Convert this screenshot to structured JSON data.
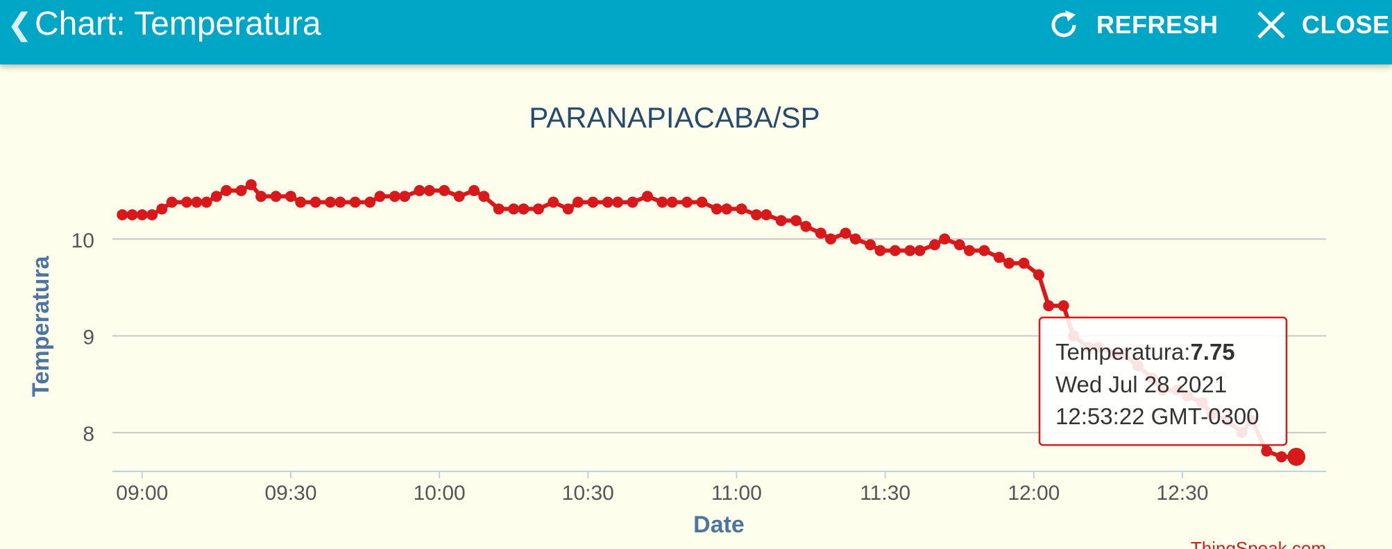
{
  "header": {
    "title": "Chart: Temperatura",
    "refresh_label": "REFRESH",
    "close_label": "CLOSE",
    "back_icon": "chevron-left-icon",
    "refresh_icon": "refresh-icon",
    "close_icon": "close-icon",
    "background_color": "#00a6c6"
  },
  "chart_data": {
    "type": "line",
    "title": "PARANAPIACABA/SP",
    "xlabel": "Date",
    "ylabel": "Temperatura",
    "x_ticks": [
      "09:00",
      "09:30",
      "10:00",
      "10:30",
      "11:00",
      "11:30",
      "12:00",
      "12:30"
    ],
    "y_ticks": [
      8,
      9,
      10
    ],
    "xlim": [
      "08:54",
      "12:59"
    ],
    "ylim": [
      7.6,
      10.8
    ],
    "grid": "horizontal",
    "line_color": "#d7191c",
    "background_color": "#fefeec",
    "series": [
      {
        "name": "Temperatura",
        "points": [
          [
            "08:56",
            10.25
          ],
          [
            "08:58",
            10.25
          ],
          [
            "09:00",
            10.25
          ],
          [
            "09:02",
            10.25
          ],
          [
            "09:04",
            10.31
          ],
          [
            "09:06",
            10.38
          ],
          [
            "09:09",
            10.38
          ],
          [
            "09:11",
            10.38
          ],
          [
            "09:13",
            10.38
          ],
          [
            "09:15",
            10.44
          ],
          [
            "09:17",
            10.5
          ],
          [
            "09:20",
            10.5
          ],
          [
            "09:22",
            10.56
          ],
          [
            "09:24",
            10.44
          ],
          [
            "09:27",
            10.44
          ],
          [
            "09:30",
            10.44
          ],
          [
            "09:32",
            10.38
          ],
          [
            "09:35",
            10.38
          ],
          [
            "09:38",
            10.38
          ],
          [
            "09:40",
            10.38
          ],
          [
            "09:43",
            10.38
          ],
          [
            "09:46",
            10.38
          ],
          [
            "09:48",
            10.44
          ],
          [
            "09:51",
            10.44
          ],
          [
            "09:53",
            10.44
          ],
          [
            "09:56",
            10.5
          ],
          [
            "09:58",
            10.5
          ],
          [
            "10:01",
            10.5
          ],
          [
            "10:04",
            10.44
          ],
          [
            "10:07",
            10.5
          ],
          [
            "10:09",
            10.44
          ],
          [
            "10:12",
            10.31
          ],
          [
            "10:15",
            10.31
          ],
          [
            "10:17",
            10.31
          ],
          [
            "10:20",
            10.31
          ],
          [
            "10:23",
            10.38
          ],
          [
            "10:26",
            10.31
          ],
          [
            "10:28",
            10.38
          ],
          [
            "10:31",
            10.38
          ],
          [
            "10:34",
            10.38
          ],
          [
            "10:36",
            10.38
          ],
          [
            "10:39",
            10.38
          ],
          [
            "10:42",
            10.44
          ],
          [
            "10:45",
            10.38
          ],
          [
            "10:47",
            10.38
          ],
          [
            "10:50",
            10.38
          ],
          [
            "10:53",
            10.38
          ],
          [
            "10:56",
            10.31
          ],
          [
            "10:58",
            10.31
          ],
          [
            "11:01",
            10.31
          ],
          [
            "11:04",
            10.25
          ],
          [
            "11:06",
            10.25
          ],
          [
            "11:09",
            10.19
          ],
          [
            "11:12",
            10.19
          ],
          [
            "11:14",
            10.13
          ],
          [
            "11:17",
            10.06
          ],
          [
            "11:19",
            10.0
          ],
          [
            "11:22",
            10.06
          ],
          [
            "11:24",
            10.0
          ],
          [
            "11:27",
            9.94
          ],
          [
            "11:29",
            9.88
          ],
          [
            "11:32",
            9.88
          ],
          [
            "11:35",
            9.88
          ],
          [
            "11:37",
            9.88
          ],
          [
            "11:40",
            9.94
          ],
          [
            "11:42",
            10.0
          ],
          [
            "11:45",
            9.94
          ],
          [
            "11:47",
            9.88
          ],
          [
            "11:50",
            9.88
          ],
          [
            "11:53",
            9.81
          ],
          [
            "11:55",
            9.75
          ],
          [
            "11:58",
            9.75
          ],
          [
            "12:01",
            9.63
          ],
          [
            "12:03",
            9.31
          ],
          [
            "12:06",
            9.31
          ],
          [
            "12:08",
            9.0
          ],
          [
            "12:11",
            8.88
          ],
          [
            "12:13",
            8.88
          ],
          [
            "12:16",
            8.81
          ],
          [
            "12:18",
            8.81
          ],
          [
            "12:21",
            8.69
          ],
          [
            "12:24",
            8.56
          ],
          [
            "12:26",
            8.44
          ],
          [
            "12:29",
            8.44
          ],
          [
            "12:31",
            8.38
          ],
          [
            "12:34",
            8.31
          ],
          [
            "12:36",
            8.19
          ],
          [
            "12:39",
            8.13
          ],
          [
            "12:42",
            8.0
          ],
          [
            "12:44",
            8.13
          ],
          [
            "12:47",
            7.81
          ],
          [
            "12:50",
            7.75
          ],
          [
            "12:53",
            7.75
          ]
        ]
      }
    ],
    "tooltip": {
      "series_label": "Temperatura:",
      "value": "7.75",
      "date_line": "Wed Jul 28 2021",
      "time_line": "12:53:22 GMT-0300",
      "point": [
        "12:53",
        7.75
      ]
    },
    "credit": "ThingSpeak.com"
  }
}
